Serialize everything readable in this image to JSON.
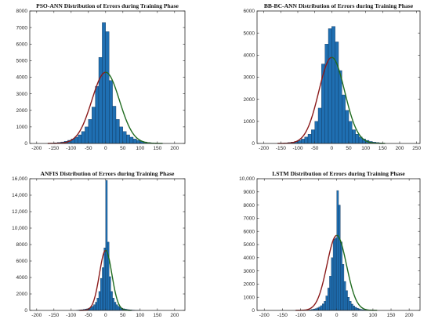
{
  "colors": {
    "bar": "#1f6fb2",
    "bar_edge": "#0b2b4d",
    "fit_left": "#8b1a1a",
    "fit_right": "#1f6b1f",
    "axis": "#262626"
  },
  "chart_data": [
    {
      "type": "bar",
      "title": "PSO-ANN Distribution of Errors during Training Phase",
      "xlabel": "",
      "ylabel": "",
      "xlim": [
        -220,
        230
      ],
      "ylim": [
        0,
        8000
      ],
      "xticks": [
        -200,
        -150,
        -100,
        -50,
        0,
        50,
        100,
        150,
        200
      ],
      "yticks": [
        0,
        1000,
        2000,
        3000,
        4000,
        5000,
        6000,
        7000,
        8000
      ],
      "ytick_labels": [
        "0",
        "1000",
        "2000",
        "3000",
        "4000",
        "5000",
        "6000",
        "7000",
        "8000"
      ],
      "bin_width": 10,
      "bin_centers": [
        -155,
        -145,
        -135,
        -125,
        -115,
        -105,
        -95,
        -85,
        -75,
        -65,
        -55,
        -45,
        -35,
        -25,
        -15,
        -5,
        5,
        15,
        25,
        35,
        45,
        55,
        65,
        75,
        85,
        95,
        105,
        115,
        125,
        135,
        145
      ],
      "counts": [
        20,
        40,
        60,
        90,
        130,
        190,
        270,
        380,
        520,
        720,
        1000,
        1450,
        2200,
        3450,
        5200,
        7300,
        6750,
        3800,
        2250,
        1450,
        1000,
        720,
        520,
        380,
        270,
        190,
        130,
        90,
        60,
        40,
        20
      ],
      "fit": {
        "type": "normal",
        "mean": 0,
        "sd": 40,
        "peak": 4300
      }
    },
    {
      "type": "bar",
      "title": "BB-BC-ANN Distribution of Errors during Training Phase",
      "xlabel": "",
      "ylabel": "",
      "xlim": [
        -220,
        260
      ],
      "ylim": [
        0,
        6000
      ],
      "xticks": [
        -200,
        -150,
        -100,
        -50,
        0,
        50,
        100,
        150,
        200,
        250
      ],
      "yticks": [
        0,
        1000,
        2000,
        3000,
        4000,
        5000,
        6000
      ],
      "ytick_labels": [
        "0",
        "1000",
        "2000",
        "3000",
        "4000",
        "5000",
        "6000"
      ],
      "bin_width": 10,
      "bin_centers": [
        -145,
        -135,
        -125,
        -115,
        -105,
        -95,
        -85,
        -75,
        -65,
        -55,
        -45,
        -35,
        -25,
        -15,
        -5,
        5,
        15,
        25,
        35,
        45,
        55,
        65,
        75,
        85,
        95,
        105,
        115,
        125,
        135,
        145
      ],
      "counts": [
        10,
        20,
        40,
        60,
        90,
        140,
        200,
        290,
        420,
        620,
        1000,
        1600,
        3600,
        4500,
        5200,
        5300,
        4600,
        3300,
        2200,
        1500,
        1000,
        620,
        420,
        290,
        200,
        140,
        90,
        60,
        40,
        20
      ],
      "fit": {
        "type": "normal",
        "mean": 0,
        "sd": 38,
        "peak": 3900
      }
    },
    {
      "type": "bar",
      "title": "ANFIS Distribution of Errors during Training Phase",
      "xlabel": "",
      "ylabel": "",
      "xlim": [
        -220,
        230
      ],
      "ylim": [
        0,
        16000
      ],
      "xticks": [
        -200,
        -150,
        -100,
        -50,
        0,
        50,
        100,
        150,
        200
      ],
      "yticks": [
        0,
        2000,
        4000,
        6000,
        8000,
        10000,
        12000,
        14000,
        16000
      ],
      "ytick_labels": [
        "0",
        "2000",
        "4000",
        "6000",
        "8000",
        "10,000",
        "12,000",
        "14,000",
        "16,000"
      ],
      "bin_width": 5,
      "bin_centers": [
        -82.5,
        -77.5,
        -72.5,
        -67.5,
        -62.5,
        -57.5,
        -52.5,
        -47.5,
        -42.5,
        -37.5,
        -32.5,
        -27.5,
        -22.5,
        -17.5,
        -12.5,
        -7.5,
        -2.5,
        2.5,
        7.5,
        12.5,
        17.5,
        22.5,
        27.5,
        32.5,
        37.5,
        42.5,
        47.5,
        52.5,
        57.5,
        62.5,
        67.5,
        72.5,
        77.5,
        82.5,
        87.5,
        92.5,
        97.5
      ],
      "counts": [
        30,
        50,
        70,
        90,
        120,
        160,
        200,
        280,
        380,
        500,
        700,
        1000,
        1500,
        2300,
        3900,
        5200,
        7600,
        15800,
        8300,
        4100,
        2300,
        1500,
        1000,
        700,
        500,
        380,
        280,
        200,
        160,
        120,
        90,
        70,
        50,
        40,
        30,
        20,
        10
      ],
      "fit": {
        "type": "normal",
        "mean": 0,
        "sd": 18,
        "peak": 7300
      }
    },
    {
      "type": "bar",
      "title": "LSTM Distribution of Errors during  Training Phase",
      "xlabel": "",
      "ylabel": "",
      "xlim": [
        -220,
        230
      ],
      "ylim": [
        0,
        10000
      ],
      "xticks": [
        -200,
        -150,
        -100,
        -50,
        0,
        50,
        100,
        150,
        200
      ],
      "yticks": [
        0,
        1000,
        2000,
        3000,
        4000,
        5000,
        6000,
        7000,
        8000,
        9000,
        10000
      ],
      "ytick_labels": [
        "0",
        "1000",
        "2000",
        "3000",
        "4000",
        "5000",
        "6000",
        "7000",
        "8000",
        "9000",
        "10,000"
      ],
      "bin_width": 5,
      "bin_centers": [
        -82.5,
        -77.5,
        -72.5,
        -67.5,
        -62.5,
        -57.5,
        -52.5,
        -47.5,
        -42.5,
        -37.5,
        -32.5,
        -27.5,
        -22.5,
        -17.5,
        -12.5,
        -7.5,
        -2.5,
        2.5,
        7.5,
        12.5,
        17.5,
        22.5,
        27.5,
        32.5,
        37.5,
        42.5,
        47.5,
        52.5,
        57.5,
        62.5,
        67.5,
        72.5,
        77.5,
        82.5,
        87.5,
        92.5,
        97.5
      ],
      "counts": [
        20,
        30,
        50,
        70,
        100,
        140,
        190,
        260,
        360,
        500,
        700,
        1100,
        1700,
        2600,
        4000,
        5400,
        5500,
        9100,
        8000,
        5200,
        3500,
        2200,
        1500,
        1000,
        700,
        480,
        340,
        240,
        170,
        120,
        80,
        60,
        40,
        30,
        20,
        10,
        5
      ],
      "fit": {
        "type": "normal",
        "mean": 0,
        "sd": 27,
        "peak": 5700
      }
    }
  ]
}
